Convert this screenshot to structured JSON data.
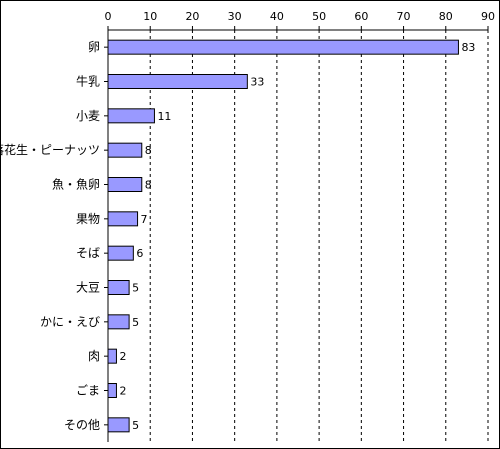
{
  "chart_data": {
    "type": "bar",
    "orientation": "horizontal",
    "categories": [
      "卵",
      "牛乳",
      "小麦",
      "落花生・ピーナッツ",
      "魚・魚卵",
      "果物",
      "そば",
      "大豆",
      "かに・えび",
      "肉",
      "ごま",
      "その他"
    ],
    "values": [
      83,
      33,
      11,
      8,
      8,
      7,
      6,
      5,
      5,
      2,
      2,
      5
    ],
    "xlim": [
      0,
      90
    ],
    "xticks": [
      0,
      10,
      20,
      30,
      40,
      50,
      60,
      70,
      80,
      90
    ],
    "xaxis_position": "top",
    "grid": "vertical dashed",
    "bar_color": "#9999ff",
    "bar_edge_color": "#000000",
    "data_labels": true
  }
}
